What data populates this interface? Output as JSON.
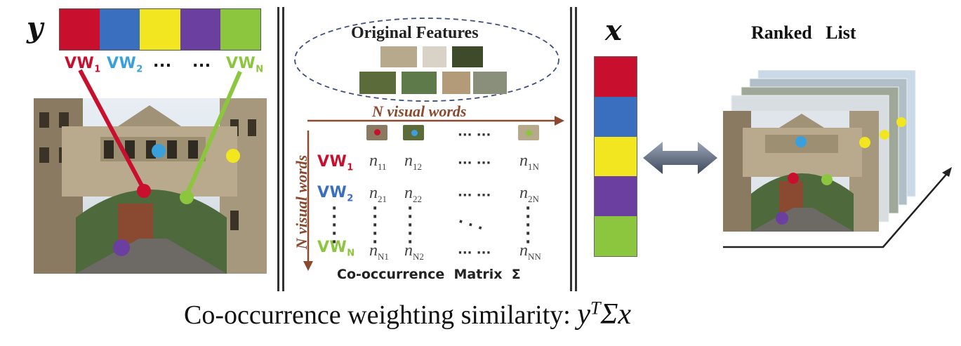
{
  "left": {
    "vector_label": "y",
    "words": [
      {
        "label": "VW",
        "sub": "1",
        "color": "#c8102e"
      },
      {
        "label": "VW",
        "sub": "2",
        "color": "#3aa0dc"
      },
      {
        "label": "...",
        "sub": "",
        "color": "#111111"
      },
      {
        "label": "...",
        "sub": "",
        "color": "#111111"
      },
      {
        "label": "VW",
        "sub": "N",
        "color": "#8cc63f"
      }
    ],
    "bar_colors": [
      "#c8102e",
      "#3a6fc0",
      "#f2e621",
      "#6b3fa0",
      "#8cc63f"
    ]
  },
  "middle": {
    "cloud_title": "Original Features",
    "axis_top": "N visual words",
    "axis_left": "N visual words",
    "row_labels": [
      {
        "label": "VW",
        "sub": "1",
        "color": "#c8102e"
      },
      {
        "label": "VW",
        "sub": "2",
        "color": "#3a6fc0"
      },
      {
        "label": "VW",
        "sub": "N",
        "color": "#8cc63f"
      }
    ],
    "cells": {
      "r1": [
        "n",
        "11",
        "n",
        "12",
        "··· ···",
        "n",
        "1N"
      ],
      "r2": [
        "n",
        "21",
        "n",
        "22",
        "··· ···",
        "n",
        "2N"
      ],
      "rN": [
        "n",
        "N1",
        "n",
        "N2",
        "··· ···",
        "n",
        "NN"
      ]
    },
    "caption": "Co-occurrence  Matrix  Σ"
  },
  "right": {
    "vector_label": "x",
    "title": "Ranked   List"
  },
  "formula": {
    "text": "Co-occurrence weighting similarity: ",
    "math_y": "y",
    "math_sup": "T",
    "math_rest": "Σx"
  }
}
